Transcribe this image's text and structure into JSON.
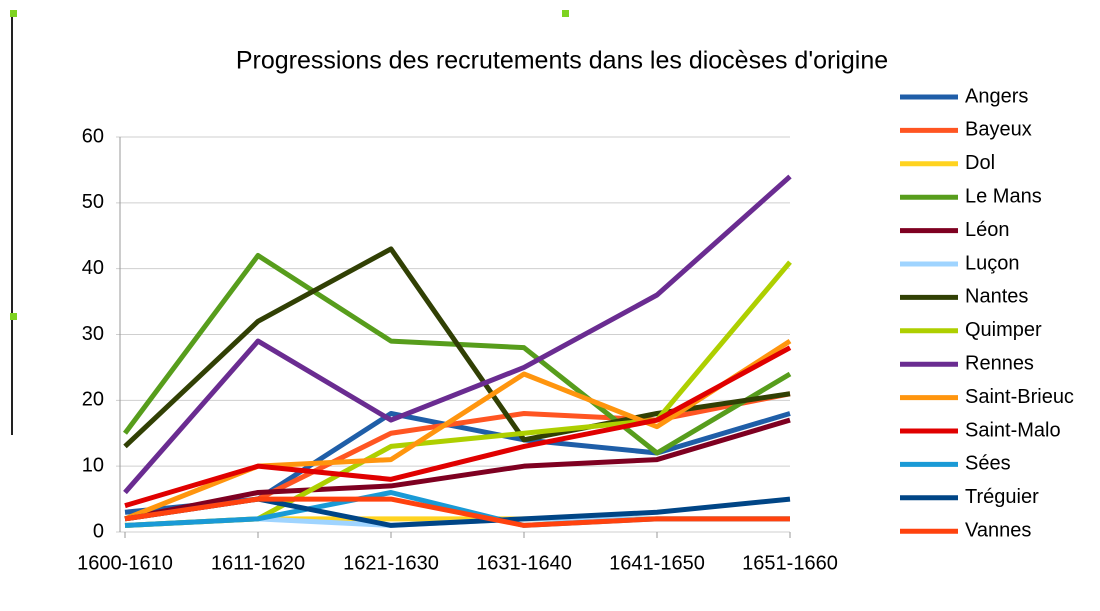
{
  "chart_data": {
    "type": "line",
    "title": "Progressions des recrutements dans les diocèses d'origine",
    "categories": [
      "1600-1610",
      "1611-1620",
      "1621-1630",
      "1631-1640",
      "1641-1650",
      "1651-1660"
    ],
    "ylim": [
      0,
      60
    ],
    "yticks": [
      0,
      10,
      20,
      30,
      40,
      50,
      60
    ],
    "grid": true,
    "legend": "right",
    "series": [
      {
        "name": "Angers",
        "color": "#1f5ea8",
        "values": [
          3,
          5,
          18,
          14,
          12,
          18
        ]
      },
      {
        "name": "Bayeux",
        "color": "#ff5522",
        "values": [
          2,
          5,
          15,
          18,
          17,
          21
        ]
      },
      {
        "name": "Dol",
        "color": "#ffd320",
        "values": [
          1,
          2,
          2,
          2,
          2,
          2
        ]
      },
      {
        "name": "Le Mans",
        "color": "#579d1c",
        "values": [
          15,
          42,
          29,
          28,
          12,
          24
        ]
      },
      {
        "name": "Léon",
        "color": "#7e0021",
        "values": [
          2,
          6,
          7,
          10,
          11,
          17
        ]
      },
      {
        "name": "Luçon",
        "color": "#9fd4ff",
        "values": [
          1,
          2,
          1,
          2,
          2,
          2
        ]
      },
      {
        "name": "Nantes",
        "color": "#314004",
        "values": [
          13,
          32,
          43,
          14,
          18,
          21
        ]
      },
      {
        "name": "Quimper",
        "color": "#aecf00",
        "values": [
          1,
          2,
          13,
          15,
          17,
          41
        ]
      },
      {
        "name": "Rennes",
        "color": "#6a2c91",
        "values": [
          6,
          29,
          17,
          25,
          36,
          54
        ]
      },
      {
        "name": "Saint-Brieuc",
        "color": "#ff950e",
        "values": [
          2,
          10,
          11,
          24,
          16,
          29
        ]
      },
      {
        "name": "Saint-Malo",
        "color": "#e00000",
        "values": [
          4,
          10,
          8,
          13,
          17,
          28
        ]
      },
      {
        "name": "Sées",
        "color": "#1a9ad6",
        "values": [
          1,
          2,
          6,
          1,
          2,
          2
        ]
      },
      {
        "name": "Tréguier",
        "color": "#004586",
        "values": [
          2,
          5,
          1,
          2,
          3,
          5
        ]
      },
      {
        "name": "Vannes",
        "color": "#ff420e",
        "values": [
          2,
          5,
          5,
          1,
          2,
          2
        ]
      }
    ]
  }
}
